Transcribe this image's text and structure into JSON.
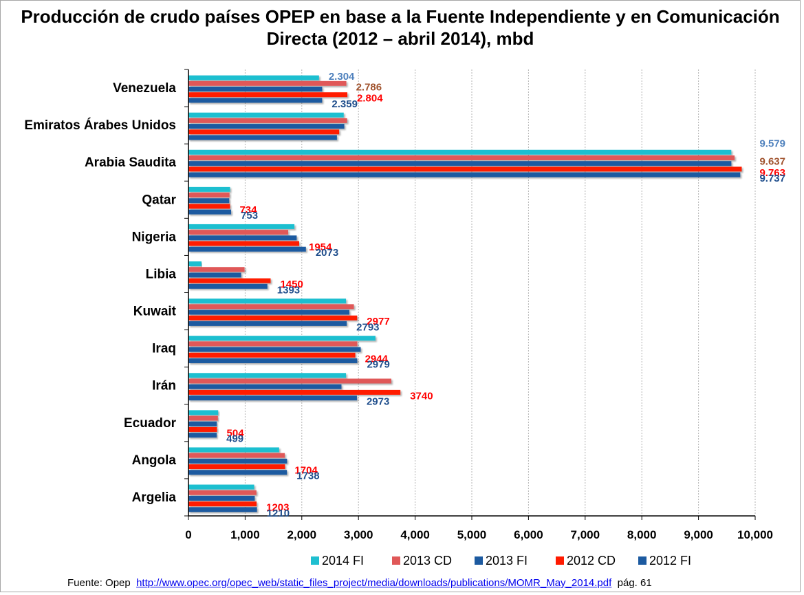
{
  "chart_data": {
    "type": "bar",
    "orientation": "horizontal",
    "title": "Producción de crudo países OPEP en base a la Fuente Independiente y en Comunicación Directa (2012 – abril  2014), mbd",
    "xlabel": "",
    "ylabel": "",
    "xlim": [
      0,
      10000
    ],
    "x_ticks": [
      "0",
      "1,000",
      "2,000",
      "3,000",
      "4,000",
      "5,000",
      "6,000",
      "7,000",
      "8,000",
      "9,000",
      "10,000"
    ],
    "grid": "vertical dashed",
    "legend_position": "bottom",
    "categories": [
      "Venezuela",
      "Emiratos Árabes Unidos",
      "Arabia Saudita",
      "Qatar",
      "Nigeria",
      "Libia",
      "Kuwait",
      "Iraq",
      "Irán",
      "Ecuador",
      "Angola",
      "Argelia"
    ],
    "series": [
      {
        "name": "2014 FI",
        "color": "#1fbfd0",
        "values": [
          2304,
          2740,
          9579,
          735,
          1870,
          230,
          2780,
          3300,
          2780,
          525,
          1600,
          1160
        ]
      },
      {
        "name": "2013 CD",
        "color": "#e05858",
        "values": [
          2786,
          2800,
          9637,
          725,
          1760,
          990,
          2920,
          2980,
          3580,
          520,
          1700,
          1200
        ]
      },
      {
        "name": "2013 FI",
        "color": "#1c5aa0",
        "values": [
          2360,
          2750,
          9580,
          720,
          1910,
          930,
          2840,
          3040,
          2700,
          500,
          1740,
          1170
        ]
      },
      {
        "name": "2012 CD",
        "color": "#ff1a00",
        "values": [
          2804,
          2660,
          9763,
          734,
          1954,
          1450,
          2977,
          2944,
          3740,
          504,
          1704,
          1203
        ]
      },
      {
        "name": "2012 FI",
        "color": "#1c5aa0",
        "values": [
          2359,
          2620,
          9737,
          753,
          2073,
          1393,
          2793,
          2979,
          2973,
          499,
          1738,
          1210
        ]
      }
    ],
    "data_labels": [
      {
        "category": "Venezuela",
        "labels": [
          {
            "series": "2014 FI",
            "text": "2.304",
            "color": "#4f81bd"
          },
          {
            "series": "2013 CD",
            "text": "2.786",
            "color": "#a0522d"
          },
          {
            "series": "2012 CD",
            "text": "2.804",
            "color": "#ff0000"
          },
          {
            "series": "2012 FI",
            "text": "2.359",
            "color": "#1f4e8c"
          }
        ]
      },
      {
        "category": "Arabia Saudita",
        "labels": [
          {
            "series": "2014 FI",
            "text": "9.579",
            "color": "#4f81bd"
          },
          {
            "series": "2013 CD",
            "text": "9.637",
            "color": "#a0522d"
          },
          {
            "series": "2012 CD",
            "text": "9.763",
            "color": "#ff0000"
          },
          {
            "series": "2012 FI",
            "text": "9.737",
            "color": "#1f4e8c"
          }
        ]
      },
      {
        "category": "Qatar",
        "labels": [
          {
            "series": "2012 CD",
            "text": "734",
            "color": "#ff0000"
          },
          {
            "series": "2012 FI",
            "text": "753",
            "color": "#1f4e8c"
          }
        ]
      },
      {
        "category": "Nigeria",
        "labels": [
          {
            "series": "2012 CD",
            "text": "1954",
            "color": "#ff0000"
          },
          {
            "series": "2012 FI",
            "text": "2073",
            "color": "#1f4e8c"
          }
        ]
      },
      {
        "category": "Libia",
        "labels": [
          {
            "series": "2012 CD",
            "text": "1450",
            "color": "#ff0000"
          },
          {
            "series": "2012 FI",
            "text": "1393",
            "color": "#1f4e8c"
          }
        ]
      },
      {
        "category": "Kuwait",
        "labels": [
          {
            "series": "2012 CD",
            "text": "2977",
            "color": "#ff0000"
          },
          {
            "series": "2012 FI",
            "text": "2793",
            "color": "#1f4e8c"
          }
        ]
      },
      {
        "category": "Iraq",
        "labels": [
          {
            "series": "2012 CD",
            "text": "2944",
            "color": "#ff0000"
          },
          {
            "series": "2012 FI",
            "text": "2979",
            "color": "#1f4e8c"
          }
        ]
      },
      {
        "category": "Irán",
        "labels": [
          {
            "series": "2012 CD",
            "text": "3740",
            "color": "#ff0000"
          },
          {
            "series": "2012 FI",
            "text": "2973",
            "color": "#1f4e8c"
          }
        ]
      },
      {
        "category": "Ecuador",
        "labels": [
          {
            "series": "2012 CD",
            "text": "504",
            "color": "#ff0000"
          },
          {
            "series": "2012 FI",
            "text": "499",
            "color": "#1f4e8c"
          }
        ]
      },
      {
        "category": "Angola",
        "labels": [
          {
            "series": "2012 CD",
            "text": "1704",
            "color": "#ff0000"
          },
          {
            "series": "2012 FI",
            "text": "1738",
            "color": "#1f4e8c"
          }
        ]
      },
      {
        "category": "Argelia",
        "labels": [
          {
            "series": "2012 CD",
            "text": "1203",
            "color": "#ff0000"
          },
          {
            "series": "2012 FI",
            "text": "1210",
            "color": "#1f4e8c"
          }
        ]
      }
    ]
  },
  "source": {
    "prefix": "Fuente: Opep",
    "link_text": "http://www.opec.org/opec_web/static_files_project/media/downloads/publications/MOMR_May_2014.pdf",
    "suffix": "pág. 61"
  }
}
